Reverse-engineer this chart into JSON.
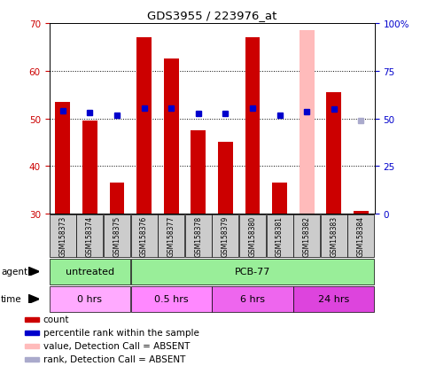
{
  "title": "GDS3955 / 223976_at",
  "samples": [
    "GSM158373",
    "GSM158374",
    "GSM158375",
    "GSM158376",
    "GSM158377",
    "GSM158378",
    "GSM158379",
    "GSM158380",
    "GSM158381",
    "GSM158382",
    "GSM158383",
    "GSM158384"
  ],
  "bar_values": [
    53.5,
    49.5,
    36.5,
    67.0,
    62.5,
    47.5,
    45.0,
    67.0,
    36.5,
    68.5,
    55.5,
    30.5
  ],
  "bar_absent": [
    false,
    false,
    false,
    false,
    false,
    false,
    false,
    false,
    false,
    true,
    false,
    false
  ],
  "rank_values": [
    54,
    53,
    51.5,
    55.5,
    55.5,
    52.5,
    52.5,
    55.5,
    51.5,
    53.5,
    55.0,
    49.0
  ],
  "rank_absent": [
    false,
    false,
    false,
    false,
    false,
    false,
    false,
    false,
    false,
    false,
    false,
    true
  ],
  "bar_bottom": 30,
  "ylim": [
    30,
    70
  ],
  "yticks_left": [
    30,
    40,
    50,
    60,
    70
  ],
  "yticks_right_vals": [
    0,
    25,
    50,
    75,
    100
  ],
  "yticks_right_labels": [
    "0",
    "25",
    "50",
    "75",
    "100%"
  ],
  "bar_color": "#cc0000",
  "bar_absent_color": "#ffbbbb",
  "rank_color": "#0000cc",
  "rank_absent_color": "#aaaacc",
  "tick_label_color_left": "#cc0000",
  "tick_label_color_right": "#0000cc",
  "sample_bg_color": "#cccccc",
  "bg_color": "#ffffff",
  "agent_groups": [
    {
      "label": "untreated",
      "start": 0,
      "end": 3,
      "color": "#99ee99"
    },
    {
      "label": "PCB-77",
      "start": 3,
      "end": 12,
      "color": "#99ee99"
    }
  ],
  "time_colors": [
    "#ffaaff",
    "#ff88ff",
    "#ee66ee",
    "#dd44dd"
  ],
  "time_groups": [
    {
      "label": "0 hrs",
      "start": 0,
      "end": 3
    },
    {
      "label": "0.5 hrs",
      "start": 3,
      "end": 6
    },
    {
      "label": "6 hrs",
      "start": 6,
      "end": 9
    },
    {
      "label": "24 hrs",
      "start": 9,
      "end": 12
    }
  ],
  "legend_colors": [
    "#cc0000",
    "#0000cc",
    "#ffbbbb",
    "#aaaacc"
  ],
  "legend_labels": [
    "count",
    "percentile rank within the sample",
    "value, Detection Call = ABSENT",
    "rank, Detection Call = ABSENT"
  ]
}
